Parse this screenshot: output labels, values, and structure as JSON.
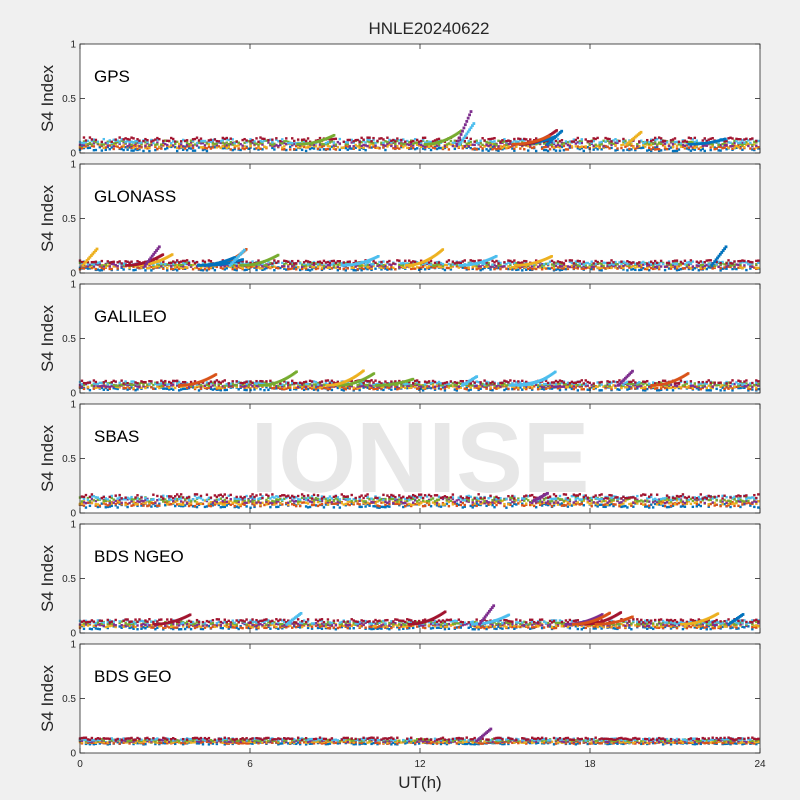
{
  "colors": {
    "figure_bg": "#f0f0f0",
    "axes_bg": "#ffffff",
    "axis": "#262626",
    "series": [
      "#0072bd",
      "#d95319",
      "#edb120",
      "#7e2f8e",
      "#77ac30",
      "#4dbeee",
      "#a2142f"
    ]
  },
  "watermark": "IONISE",
  "chart_data": {
    "type": "scatter",
    "title": "HNLE20240622",
    "xlabel": "UT(h)",
    "xlim": [
      0,
      24
    ],
    "xticks": [
      "0",
      "6",
      "12",
      "18",
      "24"
    ],
    "grid": false,
    "panels": [
      {
        "label": "GPS",
        "ylabel": "S4 Index",
        "ylim": [
          0,
          1
        ],
        "yticks": [
          "0",
          "0.5",
          "1"
        ],
        "base_level": 0.08,
        "spread": 0.04,
        "arcs": 6,
        "spikes": [
          {
            "x": 13.8,
            "y": 0.38
          },
          {
            "x": 13.9,
            "y": 0.27
          },
          {
            "x": 17.0,
            "y": 0.2
          },
          {
            "x": 19.8,
            "y": 0.19
          }
        ]
      },
      {
        "label": "GLONASS",
        "ylabel": "S4 Index",
        "ylim": [
          0,
          1
        ],
        "yticks": [
          "0",
          "0.5",
          "1"
        ],
        "base_level": 0.07,
        "spread": 0.03,
        "arcs": 10,
        "spikes": [
          {
            "x": 2.8,
            "y": 0.24
          },
          {
            "x": 5.8,
            "y": 0.21
          },
          {
            "x": 22.8,
            "y": 0.24
          },
          {
            "x": 0.6,
            "y": 0.22
          }
        ]
      },
      {
        "label": "GALILEO",
        "ylabel": "S4 Index",
        "ylim": [
          0,
          1
        ],
        "yticks": [
          "0",
          "0.5",
          "1"
        ],
        "base_level": 0.07,
        "spread": 0.03,
        "arcs": 8,
        "spikes": [
          {
            "x": 19.5,
            "y": 0.2
          },
          {
            "x": 14.0,
            "y": 0.15
          }
        ]
      },
      {
        "label": "SBAS",
        "ylabel": "S4 Index",
        "ylim": [
          0,
          1
        ],
        "yticks": [
          "0",
          "0.5",
          "1"
        ],
        "base_level": 0.11,
        "spread": 0.04,
        "arcs": 0,
        "spikes": [
          {
            "x": 16.5,
            "y": 0.18
          }
        ]
      },
      {
        "label": "BDS NGEO",
        "ylabel": "S4 Index",
        "ylim": [
          0,
          1
        ],
        "yticks": [
          "0",
          "0.5",
          "1"
        ],
        "base_level": 0.08,
        "spread": 0.03,
        "arcs": 8,
        "spikes": [
          {
            "x": 14.6,
            "y": 0.25
          },
          {
            "x": 7.8,
            "y": 0.18
          },
          {
            "x": 23.4,
            "y": 0.17
          }
        ]
      },
      {
        "label": "BDS GEO",
        "ylabel": "S4 Index",
        "ylim": [
          0,
          1
        ],
        "yticks": [
          "0",
          "0.5",
          "1"
        ],
        "base_level": 0.11,
        "spread": 0.02,
        "arcs": 0,
        "spikes": [
          {
            "x": 14.5,
            "y": 0.22
          }
        ]
      }
    ]
  }
}
